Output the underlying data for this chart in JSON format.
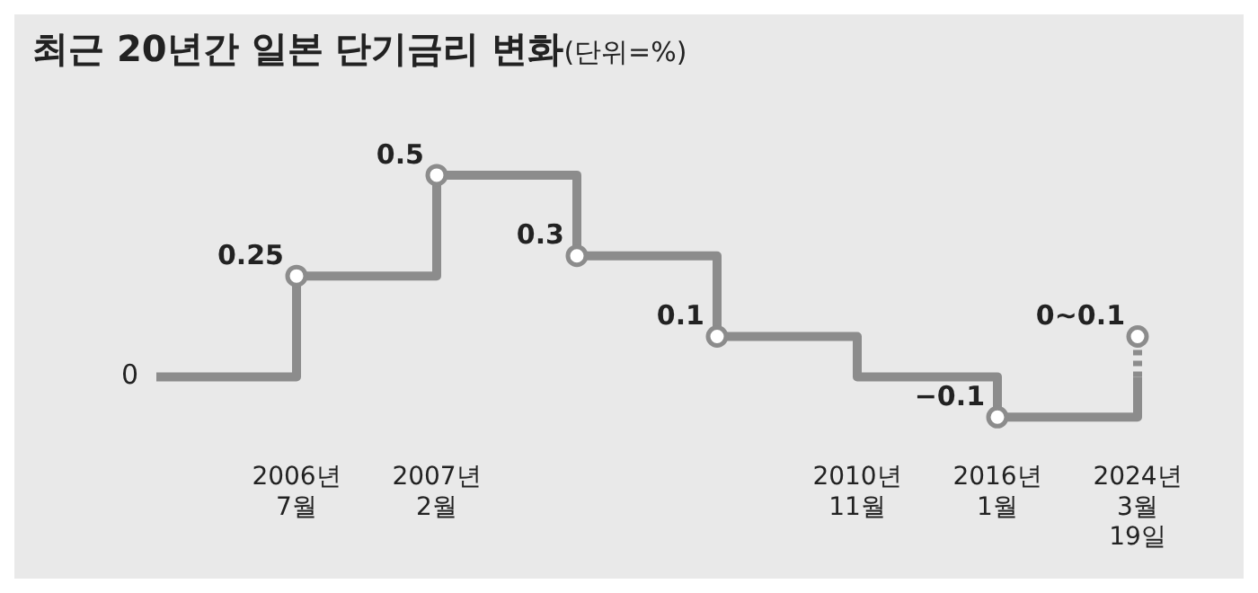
{
  "chart_data": {
    "type": "step",
    "title": "최근 20년간 일본 단기금리 변화",
    "subtitle": "(단위=%)",
    "categories": [
      null,
      "2006년 7월",
      "2007년 2월",
      null,
      null,
      "2010년 11월",
      "2016년 1월",
      "2024년 3월 19일"
    ],
    "series": [
      {
        "color": "#8c8c8c",
        "values": [
          0,
          0.25,
          0.5,
          0.3,
          0.1,
          0,
          -0.1,
          0
        ],
        "value_labels": [
          "0",
          "0.25",
          "0.5",
          "0.3",
          "0.1",
          null,
          "−0.1",
          null
        ]
      },
      {
        "type": "line",
        "line_style": "dotted",
        "color": "#8c8c8c",
        "x": [
          "2024년 3월 19일",
          "2024년 3월 19일"
        ],
        "values": [
          0,
          0.1
        ],
        "value_labels": [
          null,
          "0~0.1"
        ]
      }
    ],
    "marker": "circle",
    "legend": false,
    "grid": false
  }
}
